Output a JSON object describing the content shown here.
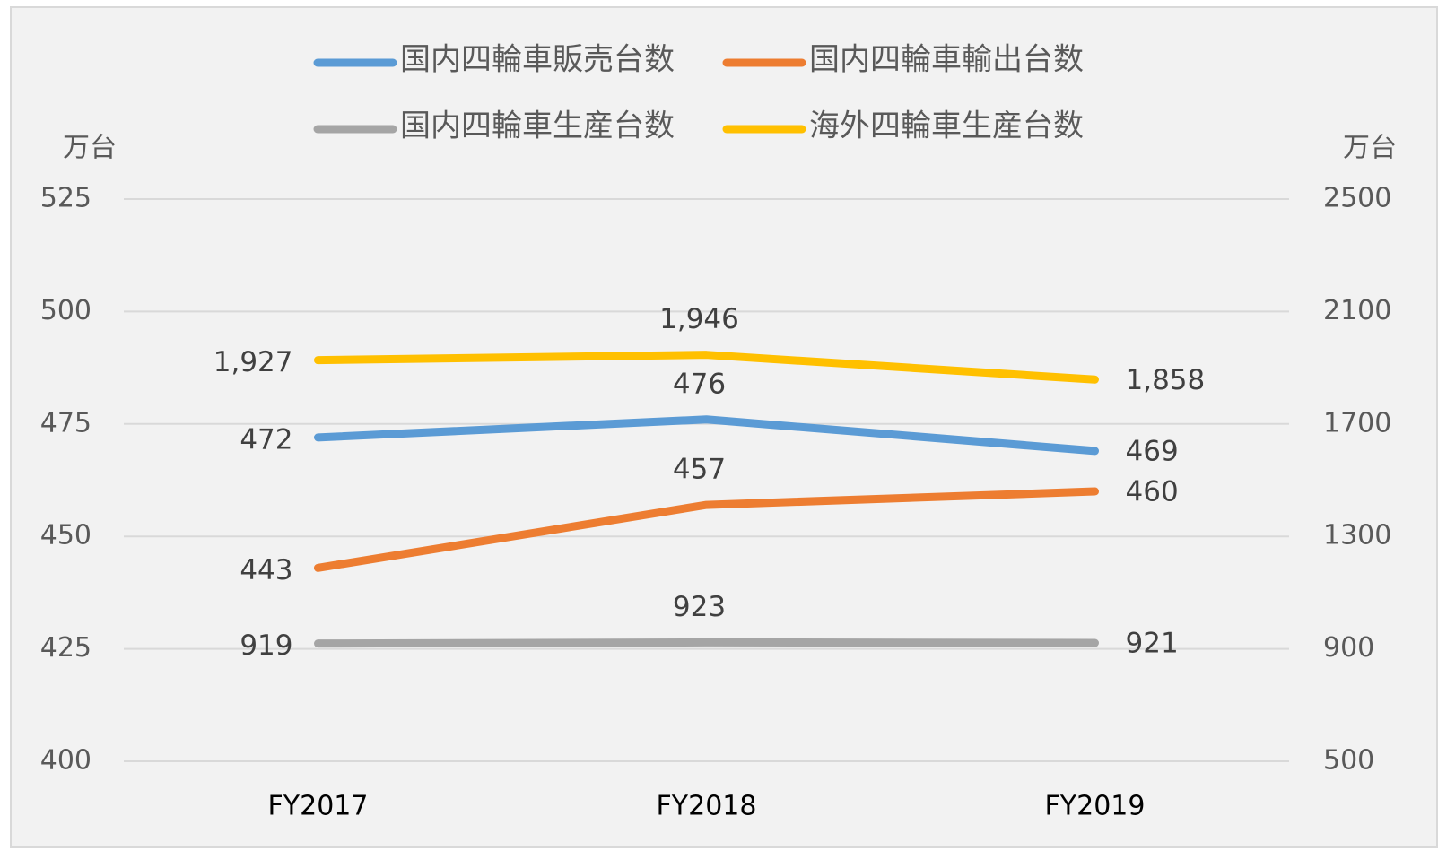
{
  "chart_data": {
    "type": "line",
    "y_label": "万台",
    "y2_label": "万台",
    "categories": [
      "FY2017",
      "FY2018",
      "FY2019"
    ],
    "ylim": [
      400,
      525
    ],
    "yticks": [
      400,
      425,
      450,
      475,
      500,
      525
    ],
    "y2lim": [
      500,
      2500
    ],
    "y2ticks": [
      500,
      900,
      1300,
      1700,
      2100,
      2500
    ],
    "grid": true,
    "legend": "top",
    "series": [
      {
        "name": "国内四輪車販売台数",
        "color": "#5b9bd5",
        "values": [
          472,
          476,
          469
        ]
      },
      {
        "name": "国内四輪車輸出台数",
        "color": "#ed7d31",
        "values": [
          443,
          457,
          460
        ]
      },
      {
        "name": "国内四輪車生産台数",
        "color": "#a5a5a5",
        "axis": "y2",
        "values": [
          919,
          923,
          921
        ]
      },
      {
        "name": "海外四輪車生産台数",
        "color": "#ffc000",
        "axis": "y2",
        "values": [
          1927,
          1946,
          1858
        ],
        "value_labels": [
          "1,927",
          "1,946",
          "1,858"
        ]
      }
    ]
  }
}
